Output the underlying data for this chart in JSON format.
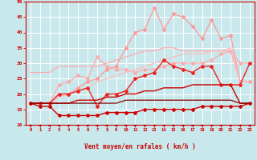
{
  "x": [
    0,
    1,
    2,
    3,
    4,
    5,
    6,
    7,
    8,
    9,
    10,
    11,
    12,
    13,
    14,
    15,
    16,
    17,
    18,
    19,
    20,
    21,
    22,
    23
  ],
  "background_color": "#c8e8ec",
  "grid_color": "#ffffff",
  "xlabel": "Vent moyen/en rafales ( km/h )",
  "xlabel_color": "#cc0000",
  "tick_color": "#cc0000",
  "arrow_color": "#cc0000",
  "ylim": [
    10,
    50
  ],
  "yticks": [
    10,
    15,
    20,
    25,
    30,
    35,
    40,
    45,
    50
  ],
  "lines": [
    {
      "y": [
        27,
        27,
        27,
        29,
        29,
        29,
        29,
        29,
        30,
        31,
        32,
        33,
        34,
        34,
        35,
        35,
        34,
        34,
        34,
        34,
        34,
        34,
        24,
        24
      ],
      "color": "#ffaaaa",
      "linewidth": 0.9,
      "marker": null
    },
    {
      "y": [
        17,
        17,
        17,
        23,
        24,
        26,
        25,
        32,
        29,
        28,
        28,
        27,
        28,
        28,
        29,
        30,
        30,
        30,
        30,
        31,
        33,
        34,
        30,
        30
      ],
      "color": "#ffaaaa",
      "linewidth": 0.9,
      "marker": "D",
      "markersize": 2.0
    },
    {
      "y": [
        17,
        17,
        17,
        20,
        20,
        22,
        24,
        25,
        28,
        29,
        35,
        40,
        41,
        48,
        41,
        46,
        45,
        42,
        38,
        44,
        38,
        39,
        24,
        24
      ],
      "color": "#ff9999",
      "linewidth": 0.9,
      "marker": "D",
      "markersize": 2.0
    },
    {
      "y": [
        17,
        17,
        17,
        19,
        20,
        21,
        22,
        24,
        25,
        26,
        27,
        28,
        29,
        30,
        31,
        32,
        33,
        33,
        33,
        34,
        34,
        35,
        24,
        24
      ],
      "color": "#ffbbbb",
      "linewidth": 0.9,
      "marker": null
    },
    {
      "y": [
        17,
        17,
        17,
        20,
        20,
        21,
        22,
        16,
        20,
        20,
        21,
        25,
        26,
        27,
        31,
        29,
        28,
        27,
        29,
        29,
        23,
        23,
        23,
        30
      ],
      "color": "#ee2222",
      "linewidth": 1.0,
      "marker": "D",
      "markersize": 2.0
    },
    {
      "y": [
        17,
        17,
        17,
        17,
        17,
        18,
        18,
        18,
        19,
        19,
        20,
        20,
        21,
        21,
        22,
        22,
        22,
        23,
        23,
        23,
        23,
        23,
        17,
        17
      ],
      "color": "#cc0000",
      "linewidth": 1.0,
      "marker": null
    },
    {
      "y": [
        17,
        16,
        16,
        13,
        13,
        13,
        13,
        13,
        14,
        14,
        14,
        14,
        15,
        15,
        15,
        15,
        15,
        15,
        16,
        16,
        16,
        16,
        16,
        17
      ],
      "color": "#cc0000",
      "linewidth": 1.0,
      "marker": "D",
      "markersize": 2.0
    },
    {
      "y": [
        17,
        17,
        17,
        17,
        17,
        17,
        17,
        17,
        17,
        17,
        18,
        18,
        18,
        18,
        18,
        18,
        18,
        18,
        18,
        18,
        18,
        18,
        17,
        17
      ],
      "color": "#880000",
      "linewidth": 0.9,
      "marker": null
    }
  ]
}
